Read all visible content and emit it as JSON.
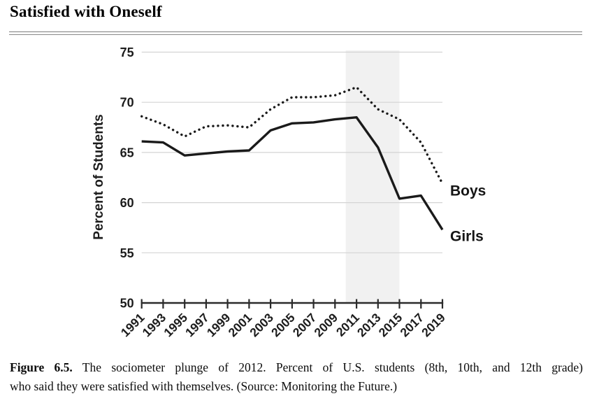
{
  "page": {
    "title": "Satisfied with Oneself",
    "caption": {
      "figure_label": "Figure 6.5.",
      "line1_rest": " The sociometer plunge of 2012. Percent of U.S. students (8th, 10th, and 12th grade)",
      "line2": "who said they were satisfied with themselves. (Source: Monitoring the Future.)"
    }
  },
  "chart_data": {
    "type": "line",
    "title": "Satisfied with Oneself",
    "xlabel": "",
    "ylabel": "Percent of Students",
    "x": [
      1991,
      1993,
      1995,
      1997,
      1999,
      2001,
      2003,
      2005,
      2007,
      2009,
      2011,
      2013,
      2015,
      2017,
      2019
    ],
    "xtick_labels": [
      "1991",
      "1993",
      "1995",
      "1997",
      "1999",
      "2001",
      "2003",
      "2005",
      "2007",
      "2009",
      "2011",
      "2013",
      "2015",
      "2017",
      "2019"
    ],
    "series": [
      {
        "name": "Boys",
        "line_style": "dotted",
        "values": [
          68.6,
          67.8,
          66.6,
          67.6,
          67.7,
          67.5,
          69.3,
          70.5,
          70.5,
          70.7,
          71.5,
          69.3,
          68.3,
          66.0,
          61.9
        ]
      },
      {
        "name": "Girls",
        "line_style": "solid",
        "values": [
          66.1,
          66.0,
          64.7,
          64.9,
          65.1,
          65.2,
          67.2,
          67.9,
          68.0,
          68.3,
          68.5,
          65.5,
          60.4,
          60.7,
          57.3
        ]
      }
    ],
    "ylim": [
      50,
      75
    ],
    "yticks": [
      50,
      55,
      60,
      65,
      70,
      75
    ],
    "grid": "horizontal",
    "legend": "inline-right-labels",
    "highlight_band": {
      "x_from": 2010,
      "x_to": 2015,
      "note": "shaded band around 2012 plunge"
    },
    "colors": {
      "line": "#1a1a1a",
      "grid": "#d4d4d4",
      "axis": "#2b2b2b",
      "band": "#f1f1f1",
      "text": "#1c1c1c"
    }
  }
}
